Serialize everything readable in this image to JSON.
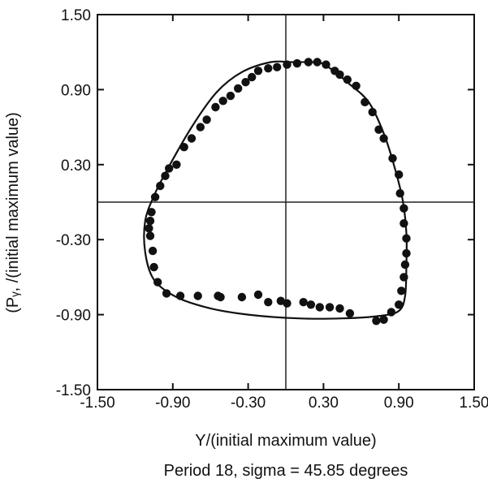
{
  "chart_data": {
    "type": "scatter",
    "title": "",
    "caption": "Period 18, sigma = 45.85 degrees",
    "xlabel": "Y/(initial maximum value)",
    "ylabel": "(Pᵧ, /(initial maximum value)",
    "xlim": [
      -1.5,
      1.5
    ],
    "ylim": [
      -1.5,
      1.5
    ],
    "x_ticks": [
      -1.5,
      -0.9,
      -0.3,
      0.3,
      0.9,
      1.5
    ],
    "y_ticks": [
      -1.5,
      -0.9,
      -0.3,
      0.3,
      0.9,
      1.5
    ],
    "x_tick_labels": [
      "-1.50",
      "-0.90",
      "-0.30",
      "0.30",
      "0.90",
      "1.50"
    ],
    "y_tick_labels": [
      "-1.50",
      "-0.90",
      "-0.30",
      "0.30",
      "0.90",
      "1.50"
    ],
    "grid": false,
    "reference_lines": {
      "x": 0,
      "y": 0
    },
    "series": [
      {
        "points": [
          [
            0.18,
            1.12
          ],
          [
            0.25,
            1.12
          ],
          [
            0.09,
            1.11
          ],
          [
            0.01,
            1.1
          ],
          [
            -0.07,
            1.08
          ],
          [
            -0.14,
            1.07
          ],
          [
            -0.22,
            1.05
          ],
          [
            -0.27,
            1.0
          ],
          [
            -0.32,
            0.96
          ],
          [
            -0.38,
            0.91
          ],
          [
            -0.44,
            0.85
          ],
          [
            -0.5,
            0.81
          ],
          [
            -0.56,
            0.76
          ],
          [
            -0.63,
            0.66
          ],
          [
            -0.68,
            0.6
          ],
          [
            -0.75,
            0.51
          ],
          [
            -0.81,
            0.44
          ],
          [
            -0.87,
            0.3
          ],
          [
            -0.93,
            0.27
          ],
          [
            -0.96,
            0.21
          ],
          [
            -1.0,
            0.13
          ],
          [
            -1.04,
            0.04
          ],
          [
            -1.07,
            -0.08
          ],
          [
            -1.08,
            -0.15
          ],
          [
            -1.09,
            -0.21
          ],
          [
            -1.08,
            -0.27
          ],
          [
            -1.06,
            -0.39
          ],
          [
            -1.05,
            -0.52
          ],
          [
            -1.02,
            -0.64
          ],
          [
            -0.95,
            -0.73
          ],
          [
            -0.84,
            -0.75
          ],
          [
            -0.7,
            -0.75
          ],
          [
            -0.54,
            -0.75
          ],
          [
            -0.52,
            -0.76
          ],
          [
            -0.35,
            -0.76
          ],
          [
            -0.22,
            -0.74
          ],
          [
            -0.14,
            -0.8
          ],
          [
            -0.04,
            -0.79
          ],
          [
            0.01,
            -0.81
          ],
          [
            0.14,
            -0.8
          ],
          [
            0.2,
            -0.82
          ],
          [
            0.27,
            -0.84
          ],
          [
            0.35,
            -0.84
          ],
          [
            0.43,
            -0.85
          ],
          [
            0.51,
            -0.89
          ],
          [
            0.72,
            -0.95
          ],
          [
            0.78,
            -0.94
          ],
          [
            0.84,
            -0.88
          ],
          [
            0.9,
            -0.82
          ],
          [
            0.92,
            -0.71
          ],
          [
            0.94,
            -0.6
          ],
          [
            0.95,
            -0.5
          ],
          [
            0.96,
            -0.41
          ],
          [
            0.96,
            -0.29
          ],
          [
            0.94,
            -0.17
          ],
          [
            0.94,
            -0.05
          ],
          [
            0.91,
            0.07
          ],
          [
            0.9,
            0.22
          ],
          [
            0.85,
            0.35
          ],
          [
            0.78,
            0.51
          ],
          [
            0.74,
            0.58
          ],
          [
            0.69,
            0.72
          ],
          [
            0.63,
            0.8
          ],
          [
            0.56,
            0.93
          ],
          [
            0.49,
            0.98
          ],
          [
            0.43,
            1.02
          ],
          [
            0.39,
            1.05
          ],
          [
            0.32,
            1.1
          ]
        ]
      },
      {
        "type": "line",
        "closed": true,
        "points": [
          [
            -0.12,
            1.12
          ],
          [
            0.05,
            1.12
          ],
          [
            0.22,
            1.12
          ],
          [
            0.29,
            1.11
          ],
          [
            0.38,
            1.05
          ],
          [
            0.5,
            0.95
          ],
          [
            0.66,
            0.8
          ],
          [
            0.78,
            0.55
          ],
          [
            0.86,
            0.3
          ],
          [
            0.93,
            0.02
          ],
          [
            0.96,
            -0.25
          ],
          [
            0.96,
            -0.5
          ],
          [
            0.95,
            -0.75
          ],
          [
            0.9,
            -0.87
          ],
          [
            0.75,
            -0.91
          ],
          [
            0.45,
            -0.93
          ],
          [
            0.1,
            -0.93
          ],
          [
            -0.3,
            -0.9
          ],
          [
            -0.6,
            -0.85
          ],
          [
            -0.87,
            -0.76
          ],
          [
            -1.05,
            -0.62
          ],
          [
            -1.12,
            -0.4
          ],
          [
            -1.12,
            -0.15
          ],
          [
            -1.05,
            0.05
          ],
          [
            -0.95,
            0.25
          ],
          [
            -0.75,
            0.6
          ],
          [
            -0.55,
            0.88
          ],
          [
            -0.35,
            1.04
          ]
        ]
      }
    ]
  }
}
